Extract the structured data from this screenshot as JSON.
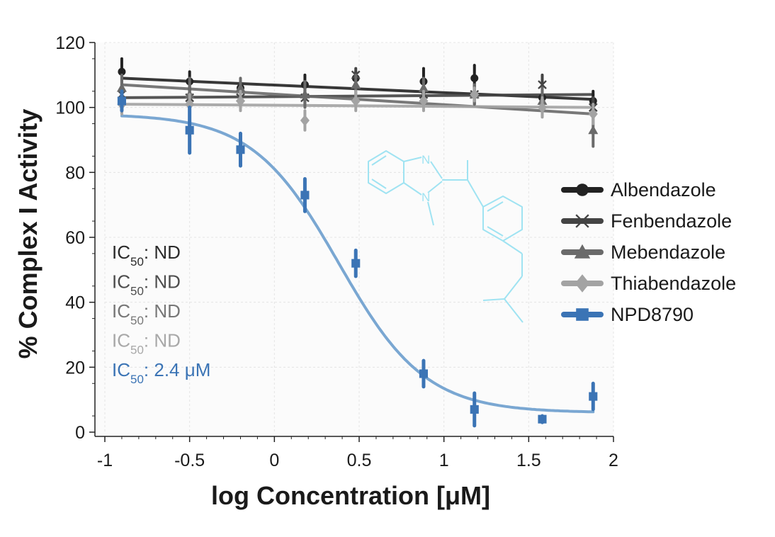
{
  "chart_data": {
    "type": "scatter",
    "title": "",
    "xlabel": "log Concentration [μM]",
    "ylabel": "% Complex I Activity",
    "xlim": [
      -1,
      2
    ],
    "ylim": [
      0,
      120
    ],
    "x_ticks": [
      -1,
      -0.5,
      0,
      0.5,
      1,
      1.5,
      2
    ],
    "y_ticks": [
      0,
      20,
      40,
      60,
      80,
      100,
      120
    ],
    "x_tick_labels": [
      "-1",
      "-0.5",
      "0",
      "0.5",
      "1",
      "1.5",
      "2"
    ],
    "y_tick_labels": [
      "0",
      "20",
      "40",
      "60",
      "80",
      "100",
      "120"
    ],
    "grid": true,
    "legend_position": "right",
    "x": [
      -0.9,
      -0.5,
      -0.2,
      0.18,
      0.48,
      0.88,
      1.18,
      1.58,
      1.88
    ],
    "series": [
      {
        "name": "Albendazole",
        "color": "#222222",
        "marker": "circle",
        "values": [
          111,
          108,
          106,
          107,
          109,
          108,
          109,
          103,
          102
        ],
        "errors": [
          4,
          3,
          2,
          3,
          2,
          4,
          4,
          2,
          3
        ],
        "fit": [
          109,
          102.5
        ]
      },
      {
        "name": "Fenbendazole",
        "color": "#444444",
        "marker": "cross",
        "values": [
          104,
          103,
          103,
          103,
          110,
          104,
          104,
          107,
          100
        ],
        "errors": [
          3,
          3,
          3,
          2,
          2,
          3,
          3,
          3,
          3
        ],
        "fit": [
          103,
          104
        ]
      },
      {
        "name": "Mebendazole",
        "color": "#6a6a6a",
        "marker": "triangle",
        "values": [
          106,
          104,
          106,
          104,
          107,
          106,
          104,
          102,
          93
        ],
        "errors": [
          4,
          5,
          3,
          4,
          3,
          3,
          3,
          4,
          5
        ],
        "fit": [
          107,
          98
        ]
      },
      {
        "name": "Thiabendazole",
        "color": "#a3a3a3",
        "marker": "diamond",
        "values": [
          101,
          101,
          102,
          96,
          102,
          102,
          104,
          100,
          98
        ],
        "errors": [
          3,
          3,
          3,
          3,
          3,
          3,
          2,
          3,
          3
        ],
        "fit": [
          101,
          100
        ]
      },
      {
        "name": "NPD8790",
        "color": "#3b74b5",
        "marker": "square",
        "values": [
          102,
          93,
          87,
          73,
          52,
          18,
          7,
          4,
          11
        ],
        "errors": [
          3,
          7,
          5,
          5,
          4,
          4,
          5,
          1,
          4
        ],
        "fit_curve": {
          "bottom": 6,
          "top": 98,
          "log_ic50": 0.38,
          "hill": 1.7
        }
      }
    ]
  },
  "annotations": [
    {
      "label": "IC",
      "sub": "50",
      "value": ": ND",
      "color": "#2b2b2b"
    },
    {
      "label": "IC",
      "sub": "50",
      "value": ": ND",
      "color": "#4d4d4d"
    },
    {
      "label": "IC",
      "sub": "50",
      "value": ": ND",
      "color": "#777777"
    },
    {
      "label": "IC",
      "sub": "50",
      "value": ": ND",
      "color": "#a8a8a8"
    },
    {
      "label": "IC",
      "sub": "50",
      "value": ": 2.4 μM",
      "color": "#3b74b5"
    }
  ],
  "structure": {
    "n_label_1": "N",
    "n_label_2": "N"
  }
}
